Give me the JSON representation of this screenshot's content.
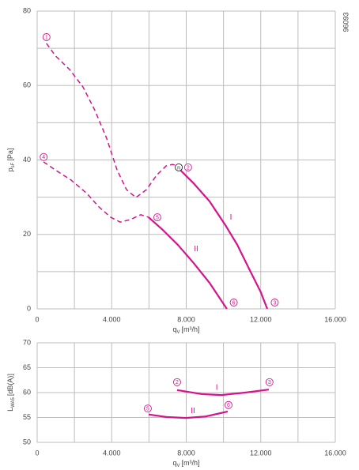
{
  "code": "96093",
  "chart_data": [
    {
      "type": "line",
      "y_label": {
        "main": "p",
        "sub": "sF",
        "unit": "[Pa]"
      },
      "x_label": {
        "main": "q",
        "sub": "V",
        "unit": "[m³/h]"
      },
      "xlim": [
        0,
        16000
      ],
      "ylim": [
        0,
        80
      ],
      "xticks": [
        0,
        {
          "value": 4000,
          "label": "4.000"
        },
        {
          "value": 8000,
          "label": "8.000"
        },
        {
          "value": 12000,
          "label": "12.000"
        },
        {
          "value": 16000,
          "label": "16.000"
        }
      ],
      "yticks": [
        0,
        20,
        40,
        60,
        80
      ],
      "xgrid": [
        2000,
        6000,
        10000,
        14000
      ],
      "ygrid": [
        10,
        30,
        50,
        70
      ],
      "grid": true,
      "series": [
        {
          "color": "#d4148c",
          "style": "dashed",
          "x": [
            500,
            976,
            1740,
            2460,
            3100,
            3730,
            4290,
            4800,
            5300,
            5860,
            6410,
            6920,
            7260,
            7550
          ],
          "values": [
            71.3,
            68,
            64.3,
            59.6,
            53.3,
            45.8,
            37.3,
            32,
            29.9,
            32,
            35.9,
            38.4,
            38.8,
            38.4
          ]
        },
        {
          "color": "#d4148c",
          "style": "solid",
          "x": [
            7680,
            8400,
            9250,
            10100,
            10740,
            11370,
            12000,
            12350
          ],
          "values": [
            37.3,
            33.7,
            28.9,
            22.5,
            17.2,
            10.8,
            4.5,
            0
          ]
        },
        {
          "color": "#d4148c",
          "style": "dashed",
          "x": [
            340,
            976,
            1820,
            2670,
            3310,
            3950,
            4460,
            5010,
            5560,
            5980
          ],
          "values": [
            39.5,
            37.3,
            34.6,
            31,
            27.4,
            24.6,
            23.3,
            24,
            25.3,
            24.6
          ]
        },
        {
          "color": "#d4148c",
          "style": "solid",
          "x": [
            5980,
            6700,
            7550,
            8400,
            9250,
            10180
          ],
          "values": [
            24.6,
            21.4,
            17.2,
            12.3,
            7,
            0
          ]
        }
      ],
      "annotations": [
        {
          "text": "1",
          "kind": "circled",
          "color": "#d4148c",
          "x": 500,
          "y": 73
        },
        {
          "text": "n",
          "kind": "circled",
          "color": "#222222",
          "x": 7600,
          "y": 38
        },
        {
          "text": "2",
          "kind": "circled",
          "color": "#d4148c",
          "x": 8100,
          "y": 38
        },
        {
          "text": "3",
          "kind": "circled",
          "color": "#d4148c",
          "x": 12750,
          "y": 1.7
        },
        {
          "text": "4",
          "kind": "circled",
          "color": "#d4148c",
          "x": 350,
          "y": 40.8
        },
        {
          "text": "5",
          "kind": "circled",
          "color": "#d4148c",
          "x": 6450,
          "y": 24.6
        },
        {
          "text": "6",
          "kind": "circled",
          "color": "#d4148c",
          "x": 10550,
          "y": 1.7
        },
        {
          "text": "I",
          "kind": "roman",
          "color": "#d4148c",
          "x": 10400,
          "y": 24.5
        },
        {
          "text": "II",
          "kind": "roman",
          "color": "#d4148c",
          "x": 8530,
          "y": 16.1
        }
      ]
    },
    {
      "type": "line",
      "y_label": {
        "main": "L",
        "sub": "WA5",
        "unit": "[dB(A)]"
      },
      "x_label": {
        "main": "q",
        "sub": "V",
        "unit": "[m³/h]"
      },
      "xlim": [
        0,
        16000
      ],
      "ylim": [
        50,
        70
      ],
      "xticks": [
        0,
        {
          "value": 4000,
          "label": "4.000"
        },
        {
          "value": 8000,
          "label": "8.000"
        },
        {
          "value": 12000,
          "label": "12.000"
        },
        {
          "value": 16000,
          "label": "16.000"
        }
      ],
      "yticks": [
        50,
        55,
        60,
        65,
        70
      ],
      "xgrid": [
        2000,
        6000,
        10000,
        14000
      ],
      "ygrid": [],
      "grid": true,
      "series": [
        {
          "color": "#d4148c",
          "style": "solid",
          "x": [
            7510,
            8830,
            9890,
            11160,
            12430
          ],
          "values": [
            60.5,
            59.7,
            59.5,
            60.0,
            60.6
          ]
        },
        {
          "color": "#d4148c",
          "style": "solid",
          "x": [
            5980,
            6920,
            7980,
            9040,
            10230
          ],
          "values": [
            55.6,
            55.1,
            54.9,
            55.2,
            56.2
          ]
        }
      ],
      "annotations": [
        {
          "text": "2",
          "kind": "circled",
          "color": "#d4148c",
          "x": 7510,
          "y": 62.1
        },
        {
          "text": "3",
          "kind": "circled",
          "color": "#d4148c",
          "x": 12470,
          "y": 62.1
        },
        {
          "text": "I",
          "kind": "roman",
          "color": "#d4148c",
          "x": 9640,
          "y": 61.0
        },
        {
          "text": "5",
          "kind": "circled",
          "color": "#d4148c",
          "x": 5940,
          "y": 56.8
        },
        {
          "text": "6",
          "kind": "circled",
          "color": "#d4148c",
          "x": 10270,
          "y": 57.5
        },
        {
          "text": "II",
          "kind": "roman",
          "color": "#d4148c",
          "x": 8360,
          "y": 56.3
        }
      ]
    }
  ]
}
